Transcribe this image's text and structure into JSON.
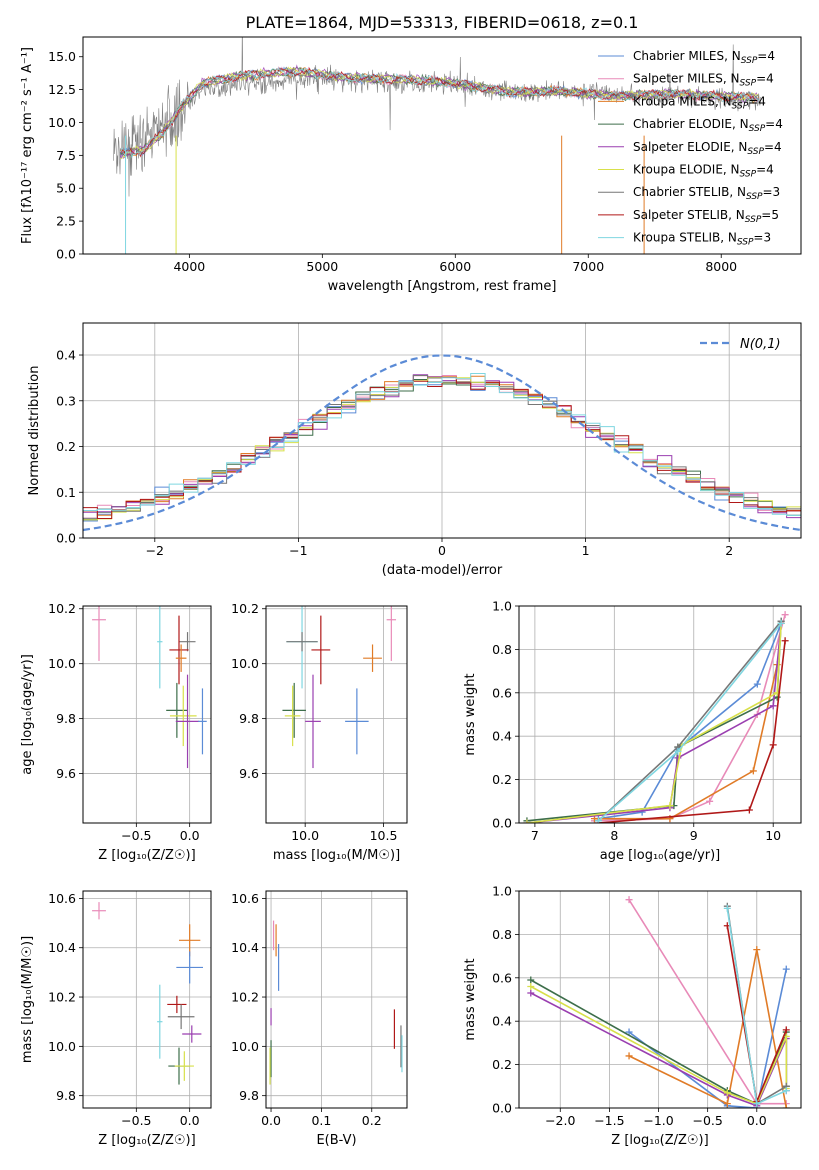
{
  "suptitle": "PLATE=1864, MJD=53313, FIBERID=0618, z=0.1",
  "colors": {
    "chabrier_miles": "#5b8bd6",
    "salpeter_miles": "#e88ab8",
    "kroupa_miles": "#e07b27",
    "chabrier_elodie": "#3d6e4a",
    "salpeter_elodie": "#9a3fb0",
    "kroupa_elodie": "#d8e04a",
    "chabrier_stelib": "#777777",
    "salpeter_stelib": "#b01818",
    "kroupa_stelib": "#7fd6e0",
    "normal": "#5b8bd6"
  },
  "chart_data": [
    {
      "id": "spectrum",
      "type": "line",
      "xlabel": "wavelength [Angstrom, rest frame]",
      "ylabel": "Flux [fλ10⁻¹⁷ erg cm⁻² s⁻¹ A⁻¹]",
      "xlim": [
        3200,
        8600
      ],
      "ylim": [
        0,
        16.5
      ],
      "xticks": [
        4000,
        5000,
        6000,
        7000,
        8000
      ],
      "yticks": [
        0.0,
        2.5,
        5.0,
        7.5,
        10.0,
        12.5,
        15.0
      ],
      "legend_position": "upper-right",
      "series": [
        {
          "name": "Chabrier MILES, N",
          "sub": "SSP",
          "suffix": "=4",
          "color": "#5b8bd6"
        },
        {
          "name": "Salpeter MILES, N",
          "sub": "SSP",
          "suffix": "=4",
          "color": "#e88ab8"
        },
        {
          "name": "Kroupa MILES, N",
          "sub": "SSP",
          "suffix": "=4",
          "color": "#e07b27"
        },
        {
          "name": "Chabrier ELODIE, N",
          "sub": "SSP",
          "suffix": "=4",
          "color": "#3d6e4a"
        },
        {
          "name": "Salpeter ELODIE, N",
          "sub": "SSP",
          "suffix": "=4",
          "color": "#9a3fb0"
        },
        {
          "name": "Kroupa ELODIE, N",
          "sub": "SSP",
          "suffix": "=4",
          "color": "#d8e04a"
        },
        {
          "name": "Chabrier STELIB, N",
          "sub": "SSP",
          "suffix": "=3",
          "color": "#777777"
        },
        {
          "name": "Salpeter STELIB, N",
          "sub": "SSP",
          "suffix": "=5",
          "color": "#b01818"
        },
        {
          "name": "Kroupa STELIB, N",
          "sub": "SSP",
          "suffix": "=3",
          "color": "#7fd6e0"
        }
      ],
      "model_continuum": [
        [
          3480,
          7.6
        ],
        [
          3650,
          7.9
        ],
        [
          3800,
          9.2
        ],
        [
          3950,
          11.3
        ],
        [
          4100,
          13.0
        ],
        [
          4400,
          13.6
        ],
        [
          4800,
          13.9
        ],
        [
          5200,
          13.4
        ],
        [
          5600,
          13.3
        ],
        [
          6000,
          13.0
        ],
        [
          6400,
          12.3
        ],
        [
          6800,
          12.4
        ],
        [
          7200,
          12.0
        ],
        [
          7600,
          12.2
        ],
        [
          8000,
          12.0
        ],
        [
          8280,
          11.9
        ]
      ],
      "data_continuum": [
        [
          3430,
          7.6
        ],
        [
          3600,
          8.2
        ],
        [
          3750,
          9.5
        ],
        [
          3900,
          10.5
        ],
        [
          4100,
          12.5
        ],
        [
          4500,
          13.0
        ],
        [
          5000,
          13.5
        ],
        [
          5500,
          13.0
        ],
        [
          6000,
          12.9
        ],
        [
          6500,
          12.2
        ],
        [
          7000,
          12.4
        ],
        [
          7500,
          12.0
        ],
        [
          8000,
          11.8
        ],
        [
          8300,
          11.7
        ]
      ]
    },
    {
      "id": "residuals",
      "type": "histogram",
      "xlabel": "(data-model)/error",
      "ylabel": "Normed distribution",
      "xlim": [
        -2.5,
        2.5
      ],
      "ylim": [
        0,
        0.47
      ],
      "xticks": [
        -2,
        -1,
        0,
        1,
        2
      ],
      "yticks": [
        0.0,
        0.1,
        0.2,
        0.3,
        0.4
      ],
      "legend": "N(0,1)",
      "legend_position": "upper-right",
      "bin_width": 0.1
    },
    {
      "id": "age_vs_Z",
      "type": "scatter",
      "xlabel": "Z [log₁₀(Z/Z☉)]",
      "ylabel": "age  [log₁₀(age/yr)]",
      "xlim": [
        -1.0,
        0.2
      ],
      "ylim": [
        9.42,
        10.21
      ],
      "xticks": [
        -0.5,
        0.0
      ],
      "yticks": [
        9.6,
        9.8,
        10.0,
        10.2
      ],
      "points": [
        {
          "model": "salpeter_miles",
          "x": -0.85,
          "y": 10.16,
          "xe": 0.13,
          "ye": 0.3
        },
        {
          "model": "kroupa_stelib",
          "x": -0.28,
          "y": 10.08,
          "xe": 0.05,
          "ye": 0.34
        },
        {
          "model": "chabrier_stelib",
          "x": -0.02,
          "y": 10.08,
          "xe": 0.15,
          "ye": 0.07
        },
        {
          "model": "salpeter_stelib",
          "x": -0.1,
          "y": 10.05,
          "xe": 0.18,
          "ye": 0.25
        },
        {
          "model": "kroupa_miles",
          "x": -0.08,
          "y": 10.02,
          "xe": 0.1,
          "ye": 0.1
        },
        {
          "model": "chabrier_elodie",
          "x": -0.12,
          "y": 9.83,
          "xe": 0.2,
          "ye": 0.2
        },
        {
          "model": "kroupa_elodie",
          "x": -0.06,
          "y": 9.81,
          "xe": 0.25,
          "ye": 0.22
        },
        {
          "model": "salpeter_elodie",
          "x": -0.02,
          "y": 9.79,
          "xe": 0.22,
          "ye": 0.34
        },
        {
          "model": "chabrier_miles",
          "x": 0.12,
          "y": 9.79,
          "xe": 0.08,
          "ye": 0.24
        }
      ]
    },
    {
      "id": "age_vs_mass",
      "type": "scatter",
      "xlabel": "mass [log₁₀(M/M☉)]",
      "ylabel": "",
      "xlim": [
        9.75,
        10.65
      ],
      "ylim": [
        9.42,
        10.21
      ],
      "xticks": [
        10.0,
        10.5
      ],
      "yticks": [
        9.6,
        9.8,
        10.0,
        10.2
      ],
      "points": [
        {
          "model": "salpeter_miles",
          "x": 10.55,
          "y": 10.16,
          "xe": 0.06,
          "ye": 0.3
        },
        {
          "model": "kroupa_stelib",
          "x": 9.98,
          "y": 10.08,
          "xe": 0.2,
          "ye": 0.34
        },
        {
          "model": "chabrier_stelib",
          "x": 9.98,
          "y": 10.08,
          "xe": 0.2,
          "ye": 0.07
        },
        {
          "model": "salpeter_stelib",
          "x": 10.1,
          "y": 10.05,
          "xe": 0.12,
          "ye": 0.25
        },
        {
          "model": "kroupa_miles",
          "x": 10.43,
          "y": 10.02,
          "xe": 0.12,
          "ye": 0.1
        },
        {
          "model": "chabrier_elodie",
          "x": 9.93,
          "y": 9.83,
          "xe": 0.15,
          "ye": 0.2
        },
        {
          "model": "kroupa_elodie",
          "x": 9.92,
          "y": 9.81,
          "xe": 0.1,
          "ye": 0.22
        },
        {
          "model": "salpeter_elodie",
          "x": 10.05,
          "y": 9.79,
          "xe": 0.1,
          "ye": 0.34
        },
        {
          "model": "chabrier_miles",
          "x": 10.33,
          "y": 9.79,
          "xe": 0.15,
          "ye": 0.24
        }
      ]
    },
    {
      "id": "weight_vs_age",
      "type": "line",
      "xlabel": "age  [log₁₀(age/yr)]",
      "ylabel": "mass weight",
      "xlim": [
        6.8,
        10.35
      ],
      "ylim": [
        0,
        1.0
      ],
      "xticks": [
        7,
        8,
        9,
        10
      ],
      "yticks": [
        0.0,
        0.2,
        0.4,
        0.6,
        0.8,
        1.0
      ],
      "series": [
        {
          "model": "chabrier_miles",
          "points": [
            [
              7.8,
              0.02
            ],
            [
              8.35,
              0.05
            ],
            [
              8.8,
              0.34
            ],
            [
              9.8,
              0.64
            ],
            [
              10.1,
              0.92
            ]
          ]
        },
        {
          "model": "salpeter_miles",
          "points": [
            [
              7.75,
              0.01
            ],
            [
              8.7,
              0.02
            ],
            [
              9.2,
              0.1
            ],
            [
              9.8,
              0.5
            ],
            [
              10.15,
              0.96
            ]
          ]
        },
        {
          "model": "kroupa_miles",
          "points": [
            [
              7.75,
              0.02
            ],
            [
              8.7,
              0.02
            ],
            [
              9.75,
              0.24
            ],
            [
              10.05,
              0.73
            ]
          ]
        },
        {
          "model": "chabrier_elodie",
          "points": [
            [
              6.9,
              0.01
            ],
            [
              8.75,
              0.08
            ],
            [
              8.8,
              0.35
            ],
            [
              10.05,
              0.58
            ],
            [
              10.1,
              0.93
            ]
          ]
        },
        {
          "model": "salpeter_elodie",
          "points": [
            [
              6.9,
              0.0
            ],
            [
              8.7,
              0.07
            ],
            [
              8.8,
              0.3
            ],
            [
              10.0,
              0.54
            ],
            [
              10.1,
              0.92
            ]
          ]
        },
        {
          "model": "kroupa_elodie",
          "points": [
            [
              6.9,
              0.0
            ],
            [
              8.7,
              0.08
            ],
            [
              8.85,
              0.36
            ],
            [
              10.05,
              0.6
            ],
            [
              10.1,
              0.92
            ]
          ]
        },
        {
          "model": "chabrier_stelib",
          "points": [
            [
              7.8,
              0.01
            ],
            [
              8.8,
              0.35
            ],
            [
              10.1,
              0.93
            ]
          ]
        },
        {
          "model": "salpeter_stelib",
          "points": [
            [
              7.8,
              0.0
            ],
            [
              9.7,
              0.06
            ],
            [
              10.0,
              0.36
            ],
            [
              10.15,
              0.84
            ]
          ]
        },
        {
          "model": "kroupa_stelib",
          "points": [
            [
              7.8,
              0.01
            ],
            [
              8.8,
              0.33
            ],
            [
              10.1,
              0.92
            ]
          ]
        }
      ]
    },
    {
      "id": "mass_vs_Z",
      "type": "scatter",
      "xlabel": "Z [log₁₀(Z/Z☉)]",
      "ylabel": "mass [log₁₀(M/M☉)]",
      "xlim": [
        -1.0,
        0.2
      ],
      "ylim": [
        9.75,
        10.63
      ],
      "xticks": [
        -0.5,
        0.0
      ],
      "yticks": [
        9.8,
        10.0,
        10.2,
        10.4,
        10.6
      ],
      "points": [
        {
          "model": "salpeter_miles",
          "x": -0.85,
          "y": 10.55,
          "xe": 0.13,
          "ye": 0.07
        },
        {
          "model": "kroupa_miles",
          "x": 0.0,
          "y": 10.43,
          "xe": 0.2,
          "ye": 0.13
        },
        {
          "model": "chabrier_miles",
          "x": 0.0,
          "y": 10.32,
          "xe": 0.25,
          "ye": 0.13
        },
        {
          "model": "salpeter_stelib",
          "x": -0.12,
          "y": 10.17,
          "xe": 0.18,
          "ye": 0.07
        },
        {
          "model": "chabrier_stelib",
          "x": -0.08,
          "y": 10.12,
          "xe": 0.25,
          "ye": 0.1
        },
        {
          "model": "kroupa_stelib",
          "x": -0.28,
          "y": 10.1,
          "xe": 0.05,
          "ye": 0.3
        },
        {
          "model": "salpeter_elodie",
          "x": 0.02,
          "y": 10.05,
          "xe": 0.18,
          "ye": 0.07
        },
        {
          "model": "chabrier_elodie",
          "x": -0.1,
          "y": 9.92,
          "xe": 0.2,
          "ye": 0.15
        },
        {
          "model": "kroupa_elodie",
          "x": -0.05,
          "y": 9.92,
          "xe": 0.18,
          "ye": 0.12
        }
      ]
    },
    {
      "id": "mass_vs_ebv",
      "type": "scatter",
      "xlabel": "E(B-V)",
      "ylabel": "",
      "xlim": [
        -0.01,
        0.27
      ],
      "ylim": [
        9.75,
        10.63
      ],
      "xticks": [
        0.0,
        0.1,
        0.2
      ],
      "yticks": [
        9.8,
        10.0,
        10.2,
        10.4,
        10.6
      ],
      "points": [
        {
          "model": "salpeter_miles",
          "x": 0.005,
          "y": 10.45,
          "xe": 0,
          "ye": 0.12
        },
        {
          "model": "kroupa_miles",
          "x": 0.01,
          "y": 10.43,
          "xe": 0,
          "ye": 0.13
        },
        {
          "model": "chabrier_miles",
          "x": 0.015,
          "y": 10.32,
          "xe": 0,
          "ye": 0.19
        },
        {
          "model": "salpeter_elodie",
          "x": 0.0,
          "y": 10.12,
          "xe": 0,
          "ye": 0.07
        },
        {
          "model": "chabrier_elodie",
          "x": 0.0,
          "y": 9.95,
          "xe": 0,
          "ye": 0.15
        },
        {
          "model": "kroupa_elodie",
          "x": -0.002,
          "y": 9.92,
          "xe": 0,
          "ye": 0.15
        },
        {
          "model": "salpeter_stelib",
          "x": 0.245,
          "y": 10.07,
          "xe": 0,
          "ye": 0.16
        },
        {
          "model": "chabrier_stelib",
          "x": 0.258,
          "y": 10.0,
          "xe": 0,
          "ye": 0.17
        },
        {
          "model": "kroupa_stelib",
          "x": 0.26,
          "y": 9.97,
          "xe": 0,
          "ye": 0.15
        }
      ]
    },
    {
      "id": "weight_vs_Z",
      "type": "line",
      "xlabel": "Z [log₁₀(Z/Z☉)]",
      "ylabel": "mass weight",
      "xlim": [
        -2.42,
        0.45
      ],
      "ylim": [
        0,
        1.0
      ],
      "xticks": [
        -2.0,
        -1.5,
        -1.0,
        -0.5,
        0.0
      ],
      "yticks": [
        0.0,
        0.2,
        0.4,
        0.6,
        0.8,
        1.0
      ],
      "series": [
        {
          "model": "chabrier_miles",
          "points": [
            [
              -1.3,
              0.35
            ],
            [
              -0.3,
              0.01
            ],
            [
              0.0,
              0.0
            ],
            [
              0.3,
              0.64
            ]
          ]
        },
        {
          "model": "salpeter_miles",
          "points": [
            [
              -1.3,
              0.96
            ],
            [
              0.0,
              0.02
            ],
            [
              0.3,
              0.02
            ]
          ]
        },
        {
          "model": "kroupa_miles",
          "points": [
            [
              -1.3,
              0.24
            ],
            [
              -0.3,
              0.02
            ],
            [
              0.0,
              0.73
            ],
            [
              0.3,
              0.0
            ]
          ]
        },
        {
          "model": "chabrier_elodie",
          "points": [
            [
              -2.3,
              0.59
            ],
            [
              -0.3,
              0.08
            ],
            [
              0.0,
              0.02
            ],
            [
              0.3,
              0.35
            ],
            [
              0.3,
              0.1
            ]
          ]
        },
        {
          "model": "salpeter_elodie",
          "points": [
            [
              -2.3,
              0.53
            ],
            [
              -0.3,
              0.06
            ],
            [
              0.0,
              0.01
            ],
            [
              0.3,
              0.32
            ],
            [
              0.3,
              0.08
            ]
          ]
        },
        {
          "model": "kroupa_elodie",
          "points": [
            [
              -2.3,
              0.56
            ],
            [
              -0.3,
              0.07
            ],
            [
              0.0,
              0.02
            ],
            [
              0.3,
              0.33
            ],
            [
              0.3,
              0.09
            ]
          ]
        },
        {
          "model": "chabrier_stelib",
          "points": [
            [
              -0.3,
              0.93
            ],
            [
              0.0,
              0.02
            ],
            [
              0.3,
              0.1
            ]
          ]
        },
        {
          "model": "salpeter_stelib",
          "points": [
            [
              -0.3,
              0.84
            ],
            [
              0.0,
              0.03
            ],
            [
              0.3,
              0.36
            ]
          ]
        },
        {
          "model": "kroupa_stelib",
          "points": [
            [
              -0.3,
              0.92
            ],
            [
              0.0,
              0.02
            ],
            [
              0.3,
              0.08
            ]
          ]
        }
      ]
    }
  ]
}
